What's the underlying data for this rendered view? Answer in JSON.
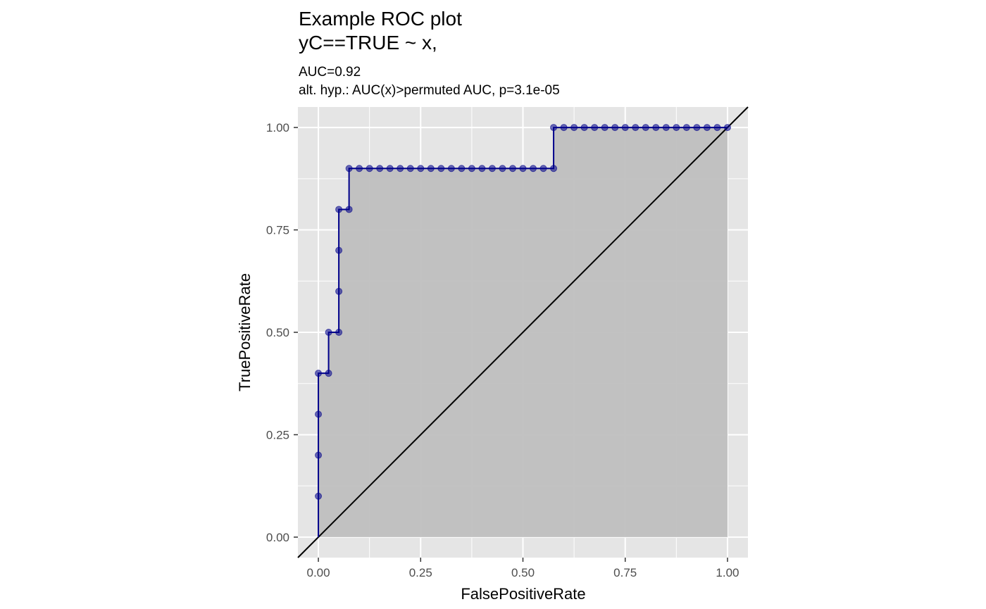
{
  "chart_data": {
    "type": "line",
    "title_lines": [
      "Example ROC plot",
      "yC==TRUE ~ x,"
    ],
    "subtitle_lines": [
      "AUC=0.92",
      "alt. hyp.: AUC(x)>permuted AUC, p=3.1e-05"
    ],
    "xlabel": "FalsePositiveRate",
    "ylabel": "TruePositiveRate",
    "xlim": [
      -0.05,
      1.05
    ],
    "ylim": [
      -0.05,
      1.05
    ],
    "x_ticks": [
      0,
      0.25,
      0.5,
      0.75,
      1
    ],
    "x_tick_labels": [
      "0.00",
      "0.25",
      "0.50",
      "0.75",
      "1.00"
    ],
    "y_ticks": [
      0,
      0.25,
      0.5,
      0.75,
      1
    ],
    "y_tick_labels": [
      "0.00",
      "0.25",
      "0.50",
      "0.75",
      "1.00"
    ],
    "grid": true,
    "colors": {
      "panel_bg": "#e5e5e5",
      "grid": "#ffffff",
      "fill": "#bfbfbf",
      "curve": "#00008b",
      "points": "#00008b",
      "diagonal": "#000000"
    },
    "diagonal": [
      [
        -0.05,
        -0.05
      ],
      [
        1.05,
        1.05
      ]
    ],
    "roc_curve": {
      "x": [
        0,
        0,
        0,
        0,
        0,
        0.025,
        0.025,
        0.05,
        0.05,
        0.05,
        0.05,
        0.075,
        0.075,
        0.1,
        0.125,
        0.15,
        0.175,
        0.2,
        0.225,
        0.25,
        0.275,
        0.3,
        0.325,
        0.35,
        0.375,
        0.4,
        0.425,
        0.45,
        0.475,
        0.5,
        0.525,
        0.55,
        0.575,
        0.575,
        0.6,
        0.625,
        0.65,
        0.675,
        0.7,
        0.725,
        0.75,
        0.775,
        0.8,
        0.825,
        0.85,
        0.875,
        0.9,
        0.925,
        0.95,
        0.975,
        1
      ],
      "y": [
        0,
        0.1,
        0.2,
        0.3,
        0.4,
        0.4,
        0.5,
        0.5,
        0.6,
        0.7,
        0.8,
        0.8,
        0.9,
        0.9,
        0.9,
        0.9,
        0.9,
        0.9,
        0.9,
        0.9,
        0.9,
        0.9,
        0.9,
        0.9,
        0.9,
        0.9,
        0.9,
        0.9,
        0.9,
        0.9,
        0.9,
        0.9,
        0.9,
        1,
        1,
        1,
        1,
        1,
        1,
        1,
        1,
        1,
        1,
        1,
        1,
        1,
        1,
        1,
        1,
        1,
        1
      ]
    },
    "points": {
      "x": [
        0,
        0,
        0,
        0,
        0.025,
        0.025,
        0.05,
        0.05,
        0.05,
        0.05,
        0.075,
        0.075,
        0.1,
        0.125,
        0.15,
        0.175,
        0.2,
        0.225,
        0.25,
        0.275,
        0.3,
        0.325,
        0.35,
        0.375,
        0.4,
        0.425,
        0.45,
        0.475,
        0.5,
        0.525,
        0.55,
        0.575,
        0.575,
        0.6,
        0.625,
        0.65,
        0.675,
        0.7,
        0.725,
        0.75,
        0.775,
        0.8,
        0.825,
        0.85,
        0.875,
        0.9,
        0.925,
        0.95,
        0.975,
        1
      ],
      "y": [
        0.1,
        0.2,
        0.3,
        0.4,
        0.4,
        0.5,
        0.5,
        0.6,
        0.7,
        0.8,
        0.8,
        0.9,
        0.9,
        0.9,
        0.9,
        0.9,
        0.9,
        0.9,
        0.9,
        0.9,
        0.9,
        0.9,
        0.9,
        0.9,
        0.9,
        0.9,
        0.9,
        0.9,
        0.9,
        0.9,
        0.9,
        0.9,
        1,
        1,
        1,
        1,
        1,
        1,
        1,
        1,
        1,
        1,
        1,
        1,
        1,
        1,
        1,
        1,
        1,
        1
      ]
    }
  }
}
